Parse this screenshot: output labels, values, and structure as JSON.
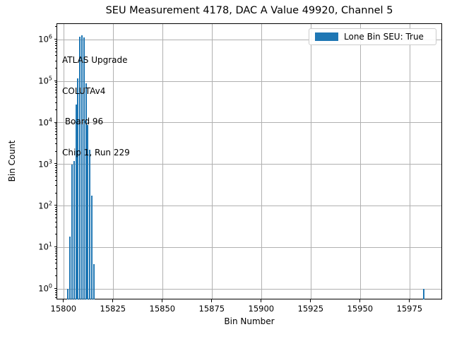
{
  "title": "SEU Measurement 4178, DAC A Value 49920, Channel 5",
  "legend": {
    "label": "Lone Bin SEU: True",
    "patch_color": "#1f77b4"
  },
  "annotation": {
    "lines": [
      "ATLAS Upgrade",
      "COLUTAv4",
      " Board 96",
      "Chip 1, Run 229"
    ]
  },
  "chart_data": {
    "type": "bar",
    "title": "SEU Measurement 4178, DAC A Value 49920, Channel 5",
    "xlabel": "Bin Number",
    "ylabel": "Bin Count",
    "yscale": "log",
    "grid": true,
    "legend_position": "upper right",
    "bar_color": "#1f77b4",
    "grid_color": "#b0b0b0",
    "bin_width": 1,
    "xlim": [
      15796.5,
      15991.5
    ],
    "ylim": [
      0.54,
      2400000
    ],
    "x_ticks": [
      15800,
      15825,
      15850,
      15875,
      15900,
      15925,
      15950,
      15975
    ],
    "y_tick_exponents": [
      0,
      1,
      2,
      3,
      4,
      5,
      6
    ],
    "x": [
      15802,
      15803,
      15804,
      15805,
      15806,
      15807,
      15808,
      15809,
      15810,
      15811,
      15812,
      15813,
      15814,
      15815,
      15982
    ],
    "counts": [
      1,
      18,
      1000,
      1200,
      28000,
      120000,
      1200000,
      1300000,
      1150000,
      90000,
      9000,
      2300,
      180,
      4,
      1
    ]
  }
}
